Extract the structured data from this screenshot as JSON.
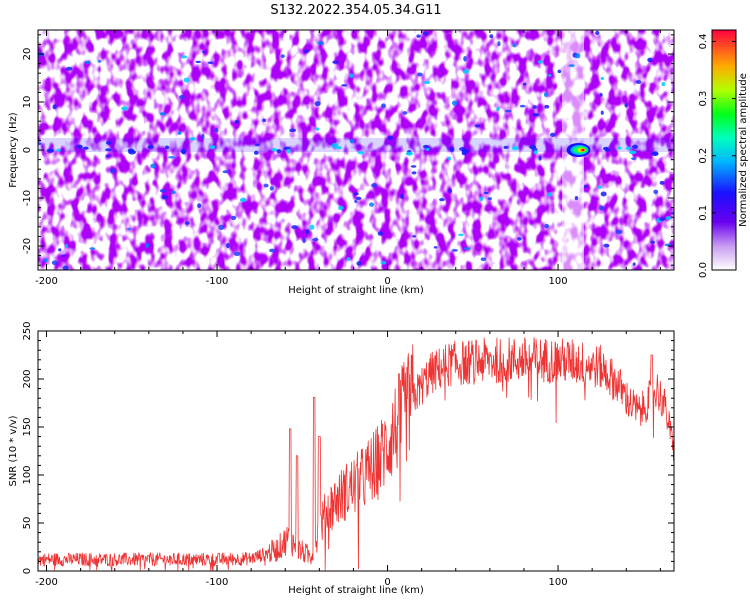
{
  "title": "S132.2022.354.05.34.G11",
  "colors": {
    "line": "#ee3333",
    "axis": "#000000",
    "spec_low": "#ffffff",
    "spec_mid": "#6a00f0",
    "spec_high": "#ff0000"
  },
  "chart_data": [
    {
      "type": "heatmap",
      "name": "spectrogram",
      "title": "S132.2022.354.05.34.G11",
      "xlabel": "Height of straight line (km)",
      "ylabel": "Frequency (Hz)",
      "xlim": [
        -205,
        168
      ],
      "ylim": [
        -25,
        25
      ],
      "xticks": [
        -200,
        -100,
        0,
        100
      ],
      "xtick_labels": [
        "-200",
        "-100",
        "0",
        "100"
      ],
      "yticks": [
        -20,
        -10,
        0,
        10,
        20
      ],
      "ytick_labels": [
        "-20",
        "-10",
        "0",
        "10",
        "20"
      ],
      "signal_peak": {
        "x_km": 112,
        "freq_hz": 0,
        "amplitude": 0.4
      },
      "colorbar": {
        "label": "Normalized spectral amplitude",
        "range": [
          0.0,
          0.42
        ],
        "ticks": [
          0.0,
          0.1,
          0.2,
          0.3,
          0.4
        ],
        "tick_labels": [
          "0.0",
          "0.1",
          "0.2",
          "0.3",
          "0.4"
        ]
      }
    },
    {
      "type": "line",
      "name": "snr",
      "xlabel": "Height of straight line (km)",
      "ylabel": "SNR (10 * v/v)",
      "xlim": [
        -205,
        168
      ],
      "ylim": [
        0,
        250
      ],
      "xticks": [
        -200,
        -100,
        0,
        100
      ],
      "xtick_labels": [
        "-200",
        "-100",
        "0",
        "100"
      ],
      "yticks": [
        0,
        50,
        100,
        150,
        200,
        250
      ],
      "ytick_labels": [
        "0",
        "50",
        "100",
        "150",
        "200",
        "250"
      ],
      "trend": {
        "x": [
          -205,
          -150,
          -100,
          -80,
          -65,
          -58,
          -52,
          -45,
          -40,
          -35,
          -25,
          -15,
          -5,
          5,
          15,
          25,
          35,
          50,
          70,
          90,
          110,
          125,
          135,
          142,
          148,
          152,
          158,
          163,
          168
        ],
        "y": [
          12,
          12,
          12,
          13,
          22,
          35,
          22,
          15,
          45,
          65,
          82,
          95,
          115,
          150,
          180,
          205,
          215,
          218,
          220,
          220,
          218,
          212,
          195,
          175,
          165,
          175,
          190,
          170,
          125
        ]
      },
      "spikes": [
        {
          "x": -57,
          "y": 148
        },
        {
          "x": -53,
          "y": 120
        },
        {
          "x": -43,
          "y": 181
        },
        {
          "x": -40,
          "y": 140
        },
        {
          "x": 155,
          "y": 225
        }
      ]
    }
  ]
}
